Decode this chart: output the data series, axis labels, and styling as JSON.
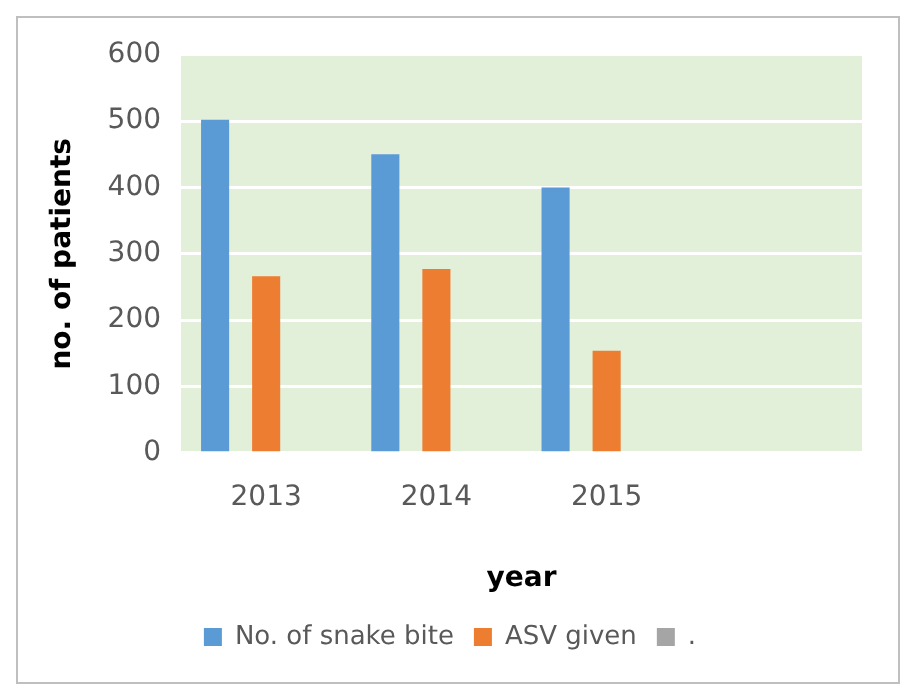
{
  "chart_data": {
    "type": "bar",
    "xlabel": "year",
    "ylabel": "no. of patients",
    "categories": [
      "2013",
      "2014",
      "2015",
      null
    ],
    "series": [
      {
        "name": "No. of snake bite",
        "color": "#5b9bd5",
        "values": [
          502,
          450,
          400,
          null
        ]
      },
      {
        "name": "ASV given",
        "color": "#ed7d31",
        "values": [
          266,
          277,
          154,
          null
        ]
      },
      {
        "name": ".",
        "color": "#a5a5a5",
        "values": [
          null,
          null,
          null,
          null
        ]
      }
    ],
    "ylim": [
      0,
      600
    ],
    "yticks": [
      0,
      100,
      200,
      300,
      400,
      500,
      600
    ],
    "grid": "y",
    "legend": "bottom"
  }
}
